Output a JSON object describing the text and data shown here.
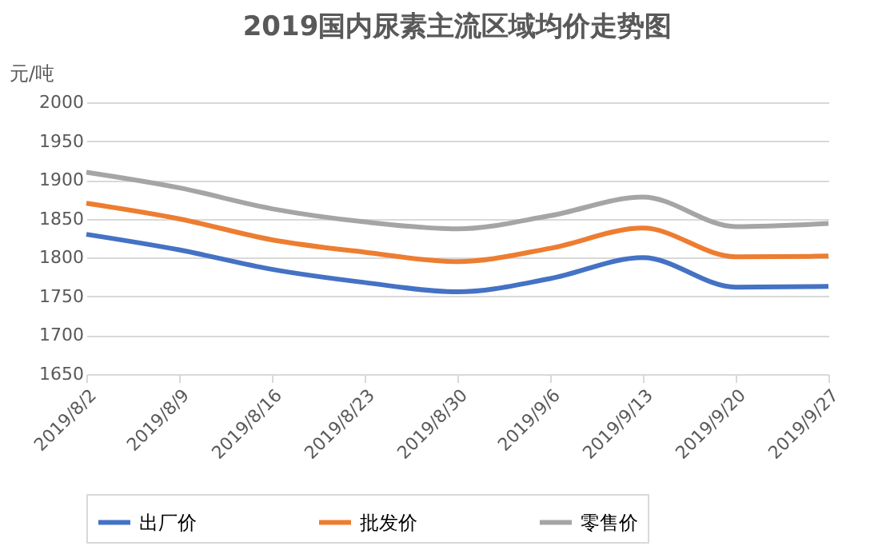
{
  "chart_data": {
    "type": "line",
    "title": "2019国内尿素主流区域均价走势图",
    "ylabel": "元/吨",
    "categories": [
      "2019/8/2",
      "2019/8/9",
      "2019/8/16",
      "2019/8/23",
      "2019/8/30",
      "2019/9/6",
      "2019/9/13",
      "2019/9/20",
      "2019/9/27"
    ],
    "series": [
      {
        "name": "出厂价",
        "color": "#4472c4",
        "values": [
          1830,
          1810,
          1785,
          1768,
          1756,
          1773,
          1800,
          1762,
          1763
        ]
      },
      {
        "name": "批发价",
        "color": "#ed7d31",
        "values": [
          1870,
          1850,
          1823,
          1807,
          1795,
          1812,
          1838,
          1801,
          1802
        ]
      },
      {
        "name": "零售价",
        "color": "#a5a5a5",
        "values": [
          1910,
          1890,
          1863,
          1846,
          1837,
          1854,
          1878,
          1840,
          1844
        ]
      }
    ],
    "ylim": [
      1650,
      2000
    ],
    "yticks": [
      1650,
      1700,
      1750,
      1800,
      1850,
      1900,
      1950,
      2000
    ],
    "grid": "y",
    "legend": "bottom",
    "marker": "none",
    "line_style": "solid"
  }
}
